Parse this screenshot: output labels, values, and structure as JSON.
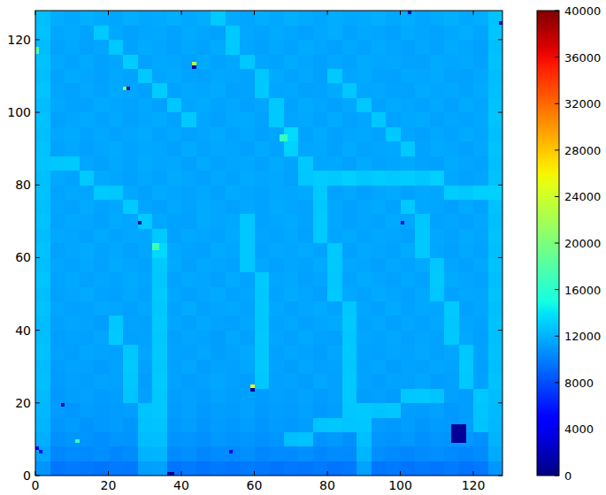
{
  "chart_data": {
    "type": "heatmap",
    "xlim": [
      0,
      128
    ],
    "ylim": [
      0,
      128
    ],
    "xticks": [
      0,
      20,
      40,
      60,
      80,
      100,
      120
    ],
    "yticks": [
      0,
      20,
      40,
      60,
      80,
      100,
      120
    ],
    "colorbar_range": [
      0,
      40000
    ],
    "colorbar_ticks": [
      0,
      4000,
      8000,
      12000,
      16000,
      20000,
      24000,
      28000,
      32000,
      36000,
      40000
    ],
    "values": [
      [
        10800,
        9600,
        9800,
        9700,
        9500,
        9800,
        9700,
        11200,
        11300,
        9600,
        9800,
        9500,
        9700,
        9600,
        9800,
        9700,
        9500,
        9700,
        9600,
        9800,
        9500,
        9700,
        11300,
        9600,
        9800,
        9500,
        9700,
        9600,
        9800,
        9500,
        9700,
        10900
      ],
      [
        11500,
        10300,
        10500,
        10400,
        10600,
        10300,
        10500,
        12000,
        12100,
        10400,
        10600,
        10300,
        10500,
        10400,
        10600,
        10300,
        10500,
        10400,
        10600,
        10300,
        10500,
        10400,
        12100,
        10600,
        10400,
        10300,
        10500,
        10600,
        10400,
        10300,
        10500,
        11700
      ],
      [
        11900,
        10700,
        10900,
        10800,
        10600,
        10900,
        10800,
        12400,
        12500,
        10800,
        10900,
        10700,
        11000,
        10800,
        10900,
        10700,
        10900,
        12500,
        12600,
        10800,
        11000,
        10700,
        12500,
        10900,
        10800,
        11000,
        10700,
        10900,
        10800,
        11000,
        10700,
        12000
      ],
      [
        12100,
        10900,
        11100,
        10800,
        11000,
        11100,
        10900,
        12600,
        12700,
        11000,
        11200,
        10900,
        11100,
        11000,
        11200,
        10900,
        11100,
        11000,
        11200,
        12700,
        12800,
        12700,
        12800,
        11100,
        11000,
        11200,
        10900,
        11100,
        11000,
        11200,
        12600,
        12200
      ],
      [
        12200,
        11100,
        10900,
        11200,
        11000,
        11100,
        11200,
        12700,
        12800,
        11100,
        11300,
        11000,
        11200,
        11100,
        11300,
        11000,
        11200,
        11100,
        11300,
        11000,
        11200,
        12800,
        12900,
        12700,
        12800,
        11200,
        11100,
        11300,
        11000,
        11200,
        12700,
        12300
      ],
      [
        12300,
        11000,
        11200,
        11300,
        11100,
        11200,
        12700,
        11300,
        12800,
        11200,
        11300,
        11100,
        11400,
        11200,
        11300,
        11100,
        11300,
        11200,
        11400,
        11100,
        11300,
        12900,
        11200,
        11300,
        11100,
        12800,
        12900,
        12700,
        11300,
        11200,
        12800,
        12400
      ],
      [
        12500,
        11100,
        11300,
        11200,
        11400,
        11300,
        12800,
        11200,
        12900,
        11400,
        11200,
        11300,
        11500,
        11300,
        11200,
        12800,
        11300,
        11400,
        11200,
        11500,
        11300,
        12900,
        11400,
        11200,
        11400,
        11300,
        11500,
        11200,
        11300,
        12800,
        11400,
        12600
      ],
      [
        12400,
        11200,
        11400,
        11300,
        11100,
        11400,
        12900,
        11300,
        12800,
        11300,
        11500,
        11200,
        11400,
        11300,
        11500,
        12900,
        11400,
        11200,
        11500,
        11300,
        11400,
        12800,
        11300,
        11500,
        11200,
        11400,
        11300,
        11500,
        11400,
        12900,
        11300,
        12500
      ],
      [
        12600,
        11300,
        11200,
        11500,
        11400,
        11300,
        12800,
        11500,
        12900,
        11400,
        11300,
        11500,
        11200,
        11400,
        11600,
        12800,
        11300,
        11500,
        11400,
        11200,
        11500,
        12900,
        11400,
        11300,
        11500,
        11400,
        11600,
        11300,
        11500,
        12800,
        11400,
        12600
      ],
      [
        12500,
        11200,
        11400,
        11300,
        11500,
        12900,
        11300,
        11400,
        12800,
        11300,
        11500,
        11400,
        11200,
        11600,
        11300,
        12900,
        11500,
        11300,
        11600,
        11400,
        11300,
        12800,
        11500,
        11400,
        11600,
        11300,
        11500,
        11400,
        12900,
        11600,
        11300,
        12500
      ],
      [
        12400,
        11300,
        11500,
        11400,
        11200,
        12800,
        11400,
        11300,
        12900,
        11500,
        11300,
        11600,
        11400,
        11300,
        11500,
        12800,
        11400,
        11600,
        11300,
        11500,
        11700,
        12900,
        11400,
        11600,
        11300,
        11500,
        11400,
        11600,
        12800,
        11500,
        11400,
        12600
      ],
      [
        12600,
        11500,
        11300,
        11400,
        11600,
        11500,
        11300,
        11600,
        12800,
        11400,
        11700,
        11300,
        11500,
        11600,
        11400,
        12900,
        11600,
        11300,
        11500,
        11700,
        11400,
        12800,
        11500,
        11300,
        11700,
        11400,
        11600,
        11500,
        12900,
        11300,
        11500,
        12500
      ],
      [
        12500,
        11300,
        11500,
        11700,
        11400,
        11300,
        11600,
        11400,
        12900,
        11600,
        11300,
        11500,
        11700,
        11400,
        11500,
        12800,
        11400,
        11700,
        11500,
        11300,
        12900,
        11600,
        11400,
        11700,
        11500,
        11300,
        11600,
        12800,
        11400,
        11600,
        11500,
        12600
      ],
      [
        12700,
        11400,
        11600,
        11300,
        11500,
        11400,
        11700,
        11500,
        12800,
        11400,
        11600,
        11500,
        11300,
        11700,
        11400,
        12900,
        11500,
        11600,
        11300,
        11500,
        12800,
        11400,
        11700,
        11500,
        11300,
        11600,
        11400,
        12900,
        11700,
        11500,
        11400,
        12500
      ],
      [
        12500,
        11500,
        11400,
        11600,
        11300,
        11700,
        11500,
        11400,
        12900,
        11700,
        11300,
        11600,
        11500,
        11400,
        12800,
        11600,
        11300,
        11500,
        11400,
        11700,
        12900,
        11600,
        11500,
        11300,
        11600,
        11400,
        11700,
        12800,
        11500,
        11300,
        11600,
        12600
      ],
      [
        12600,
        11300,
        11500,
        11700,
        11400,
        11600,
        11300,
        11500,
        13500,
        11600,
        11400,
        11300,
        11700,
        11500,
        12800,
        11400,
        11600,
        11500,
        11700,
        11400,
        12900,
        11300,
        11600,
        11500,
        11400,
        11700,
        12900,
        11500,
        11300,
        11600,
        11400,
        12500
      ],
      [
        12400,
        11600,
        11500,
        11300,
        11700,
        11400,
        11600,
        11500,
        12900,
        11300,
        11600,
        11500,
        11400,
        11700,
        12800,
        11500,
        11400,
        11600,
        11300,
        12900,
        11500,
        11700,
        11400,
        11600,
        11500,
        11300,
        12900,
        11600,
        11400,
        11700,
        11500,
        12600
      ],
      [
        12600,
        11400,
        11600,
        11500,
        11300,
        11700,
        11500,
        12900,
        11600,
        11400,
        11300,
        11700,
        11500,
        11600,
        12800,
        11400,
        11500,
        11700,
        11400,
        12900,
        11600,
        11300,
        11500,
        11400,
        11700,
        11600,
        12800,
        11400,
        11500,
        11300,
        11600,
        12500
      ],
      [
        12500,
        11500,
        11300,
        11700,
        11400,
        11600,
        12900,
        11500,
        11300,
        11600,
        11400,
        11700,
        11500,
        11300,
        11600,
        11400,
        11700,
        11500,
        11400,
        12800,
        11600,
        11300,
        11500,
        11700,
        11400,
        12900,
        11600,
        11500,
        11300,
        11700,
        11400,
        12600
      ],
      [
        12600,
        11400,
        11600,
        11500,
        12900,
        12800,
        11600,
        11300,
        11700,
        11500,
        11400,
        11600,
        11300,
        11700,
        11500,
        11400,
        11600,
        11500,
        11700,
        12900,
        11400,
        11600,
        11300,
        11500,
        11700,
        11400,
        11600,
        11500,
        13000,
        12900,
        13100,
        13200
      ],
      [
        12500,
        11600,
        11400,
        12900,
        11700,
        11500,
        11300,
        11600,
        11400,
        11700,
        11500,
        11300,
        11600,
        11400,
        11700,
        11500,
        11600,
        11300,
        12800,
        13000,
        12900,
        13100,
        12800,
        13000,
        12900,
        13000,
        12800,
        13100,
        11600,
        11400,
        11500,
        12600
      ],
      [
        12700,
        12800,
        12900,
        11500,
        11300,
        11600,
        11400,
        11700,
        11500,
        11600,
        11300,
        11700,
        11400,
        11500,
        11600,
        11300,
        11700,
        11400,
        12900,
        11500,
        11600,
        11300,
        11700,
        11400,
        11500,
        11600,
        11400,
        11300,
        11700,
        11500,
        11400,
        12500
      ],
      [
        12600,
        11400,
        11600,
        11300,
        11500,
        11700,
        11400,
        11600,
        11500,
        11300,
        11700,
        11400,
        11600,
        11500,
        11300,
        11700,
        11400,
        13200,
        11500,
        11600,
        11300,
        11700,
        11400,
        11500,
        11600,
        12900,
        11400,
        11700,
        11500,
        11300,
        11600,
        12600
      ],
      [
        12500,
        11500,
        11700,
        11400,
        11600,
        11300,
        11500,
        11700,
        11400,
        11600,
        11300,
        11500,
        11700,
        11400,
        11600,
        11300,
        11500,
        13600,
        11400,
        11700,
        11300,
        11500,
        11600,
        11400,
        12900,
        11500,
        11300,
        11600,
        11400,
        11700,
        11500,
        12500
      ],
      [
        12600,
        11300,
        11500,
        11700,
        11400,
        11600,
        11300,
        11500,
        11700,
        11400,
        12900,
        11500,
        11300,
        11600,
        11700,
        11400,
        12900,
        11500,
        11600,
        11400,
        11700,
        11300,
        11500,
        12800,
        11400,
        11600,
        11700,
        11300,
        11500,
        11400,
        11600,
        12700
      ],
      [
        12400,
        11600,
        11400,
        11300,
        11700,
        11500,
        11400,
        11600,
        11300,
        12800,
        11500,
        11700,
        11400,
        11600,
        11300,
        11500,
        12900,
        11400,
        11700,
        11500,
        11300,
        11600,
        12800,
        11400,
        11700,
        11500,
        11400,
        11600,
        11300,
        11700,
        11500,
        12600
      ],
      [
        12700,
        11500,
        11300,
        11600,
        11400,
        11700,
        11500,
        11300,
        13000,
        11400,
        11600,
        11500,
        11700,
        11300,
        11400,
        12900,
        11500,
        11600,
        11300,
        11400,
        11700,
        12800,
        11500,
        11600,
        11400,
        11300,
        11700,
        11500,
        11600,
        11400,
        11700,
        12500
      ],
      [
        12500,
        11400,
        11700,
        11500,
        11300,
        11600,
        11400,
        12900,
        11500,
        11700,
        11400,
        11300,
        11600,
        11500,
        11400,
        12800,
        11700,
        11400,
        11600,
        11300,
        12900,
        11500,
        11700,
        11400,
        11300,
        11600,
        11500,
        11700,
        11400,
        11300,
        11600,
        12400
      ],
      [
        12600,
        11600,
        11400,
        11700,
        11300,
        11500,
        13000,
        11400,
        11600,
        11500,
        11300,
        11700,
        11400,
        11600,
        12800,
        11500,
        11400,
        11700,
        11500,
        11300,
        11600,
        11400,
        11700,
        11500,
        11600,
        11400,
        11300,
        11700,
        11500,
        11600,
        11400,
        12600
      ],
      [
        12400,
        11400,
        11600,
        11300,
        11500,
        12800,
        11400,
        11700,
        11500,
        11300,
        11600,
        11400,
        11700,
        12900,
        11500,
        11300,
        11600,
        11400,
        11700,
        11500,
        11300,
        11600,
        11400,
        11700,
        11500,
        11300,
        11600,
        11400,
        11700,
        11500,
        11300,
        12500
      ],
      [
        12600,
        11500,
        11700,
        11400,
        12900,
        11600,
        11300,
        11500,
        11600,
        11400,
        11700,
        11500,
        11300,
        12900,
        11600,
        11400,
        11700,
        11500,
        11300,
        11600,
        11800,
        11400,
        11600,
        11500,
        11300,
        11700,
        11500,
        11400,
        11600,
        11800,
        11500,
        12700
      ],
      [
        12500,
        11800,
        11600,
        11900,
        11700,
        11500,
        11800,
        11600,
        11700,
        11900,
        11600,
        11800,
        12900,
        11700,
        11500,
        11800,
        11600,
        11900,
        11700,
        11500,
        11800,
        11600,
        11700,
        11900,
        11600,
        11800,
        11500,
        11700,
        11900,
        11600,
        11800,
        12600
      ]
    ],
    "cells": [
      {
        "x": 43,
        "y": 113,
        "value": 23000
      },
      {
        "x": 43,
        "y": 112,
        "value": 1000
      },
      {
        "x": 24,
        "y": 106,
        "value": 21000
      },
      {
        "x": 25,
        "y": 106,
        "value": 1500
      },
      {
        "x": 28,
        "y": 69,
        "value": 1500
      },
      {
        "x": 59,
        "y": 24,
        "value": 26000
      },
      {
        "x": 59,
        "y": 23,
        "value": 1000
      },
      {
        "x": 7,
        "y": 19,
        "value": 2000
      },
      {
        "x": 100,
        "y": 69,
        "value": 4000
      },
      {
        "x": 102,
        "y": 127,
        "value": 3000
      },
      {
        "x": 127,
        "y": 124,
        "value": 3000
      },
      {
        "x": 36,
        "y": 0,
        "value": 500
      },
      {
        "x": 37,
        "y": 0,
        "value": 500
      },
      {
        "x": 67,
        "y": 92,
        "value": 16500
      },
      {
        "x": 68,
        "y": 92,
        "value": 16500
      },
      {
        "x": 67,
        "y": 93,
        "value": 16500
      },
      {
        "x": 68,
        "y": 93,
        "value": 16500
      },
      {
        "x": 32,
        "y": 62,
        "value": 17000
      },
      {
        "x": 33,
        "y": 62,
        "value": 17000
      },
      {
        "x": 32,
        "y": 63,
        "value": 17000
      },
      {
        "x": 33,
        "y": 63,
        "value": 17000
      },
      {
        "x": 0,
        "y": 7,
        "value": 4000
      },
      {
        "x": 1,
        "y": 6,
        "value": 4000
      },
      {
        "x": 11,
        "y": 9,
        "value": 16500
      },
      {
        "x": 53,
        "y": 6,
        "value": 5000
      },
      {
        "x": 0,
        "y": 116,
        "value": 18000
      },
      {
        "x": 0,
        "y": 117,
        "value": 18000
      },
      {
        "x": 114,
        "y": 9,
        "value": 800
      },
      {
        "x": 115,
        "y": 9,
        "value": 800
      },
      {
        "x": 116,
        "y": 9,
        "value": 800
      },
      {
        "x": 117,
        "y": 9,
        "value": 800
      },
      {
        "x": 114,
        "y": 10,
        "value": 800
      },
      {
        "x": 115,
        "y": 10,
        "value": 800
      },
      {
        "x": 116,
        "y": 10,
        "value": 800
      },
      {
        "x": 117,
        "y": 10,
        "value": 800
      },
      {
        "x": 114,
        "y": 11,
        "value": 800
      },
      {
        "x": 115,
        "y": 11,
        "value": 800
      },
      {
        "x": 116,
        "y": 11,
        "value": 800
      },
      {
        "x": 117,
        "y": 11,
        "value": 800
      },
      {
        "x": 114,
        "y": 12,
        "value": 800
      },
      {
        "x": 115,
        "y": 12,
        "value": 800
      },
      {
        "x": 116,
        "y": 12,
        "value": 800
      },
      {
        "x": 117,
        "y": 12,
        "value": 800
      },
      {
        "x": 114,
        "y": 13,
        "value": 800
      },
      {
        "x": 115,
        "y": 13,
        "value": 800
      },
      {
        "x": 116,
        "y": 13,
        "value": 800
      },
      {
        "x": 117,
        "y": 13,
        "value": 800
      }
    ]
  }
}
